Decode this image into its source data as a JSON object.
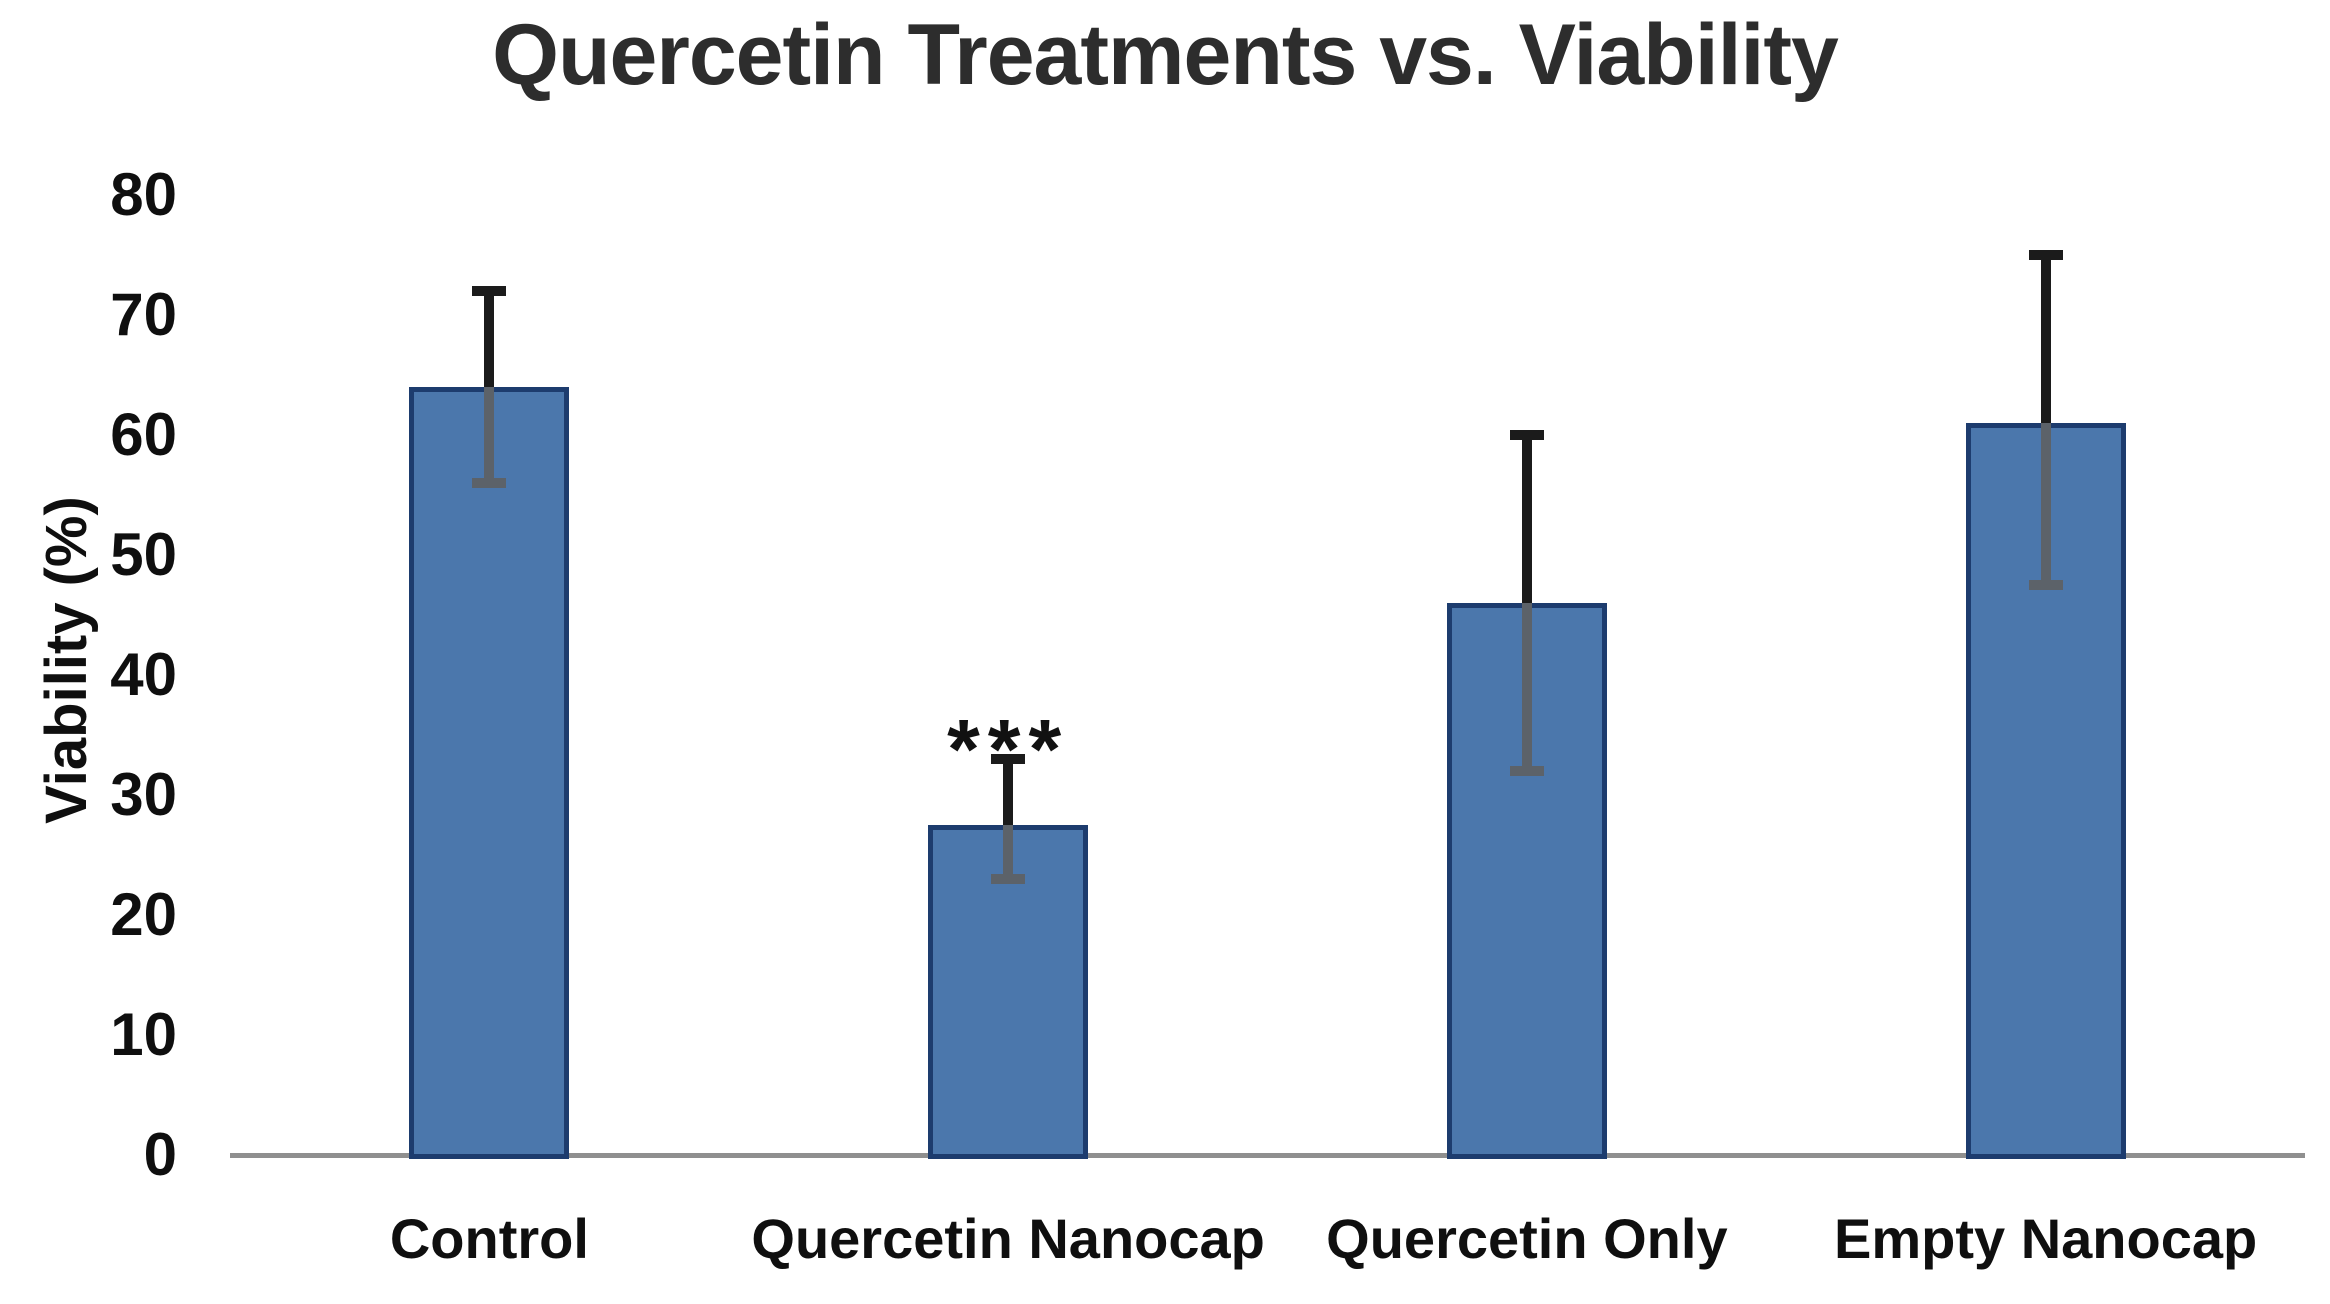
{
  "chart_data": {
    "type": "bar",
    "title": "Quercetin Treatments vs. Viability",
    "xlabel": "",
    "ylabel": "Viability (%)",
    "categories": [
      "Control",
      "Quercetin Nanocap",
      "Quercetin Only",
      "Empty Nanocap"
    ],
    "values": [
      64,
      27.5,
      46,
      61
    ],
    "error_bars": [
      {
        "low": 56,
        "high": 72
      },
      {
        "low": 23,
        "high": 33
      },
      {
        "low": 32,
        "high": 60
      },
      {
        "low": 47.5,
        "high": 75
      }
    ],
    "annotations": [
      {
        "category_index": 1,
        "text": "***",
        "meaning": "significance-marker"
      }
    ],
    "ylim": [
      0,
      80
    ],
    "yticks": [
      0,
      10,
      20,
      30,
      40,
      50,
      60,
      70,
      80
    ],
    "grid": false,
    "legend": "none",
    "colors": {
      "bar_fill": "#4b77ac",
      "bar_border": "#1d3c6e",
      "error_upper": "#1b1b1b",
      "error_lower": "#5c6269",
      "axis_line": "#8f8f8f",
      "title_text": "#2d2d2d",
      "tick_text": "#0f0f0f"
    }
  }
}
